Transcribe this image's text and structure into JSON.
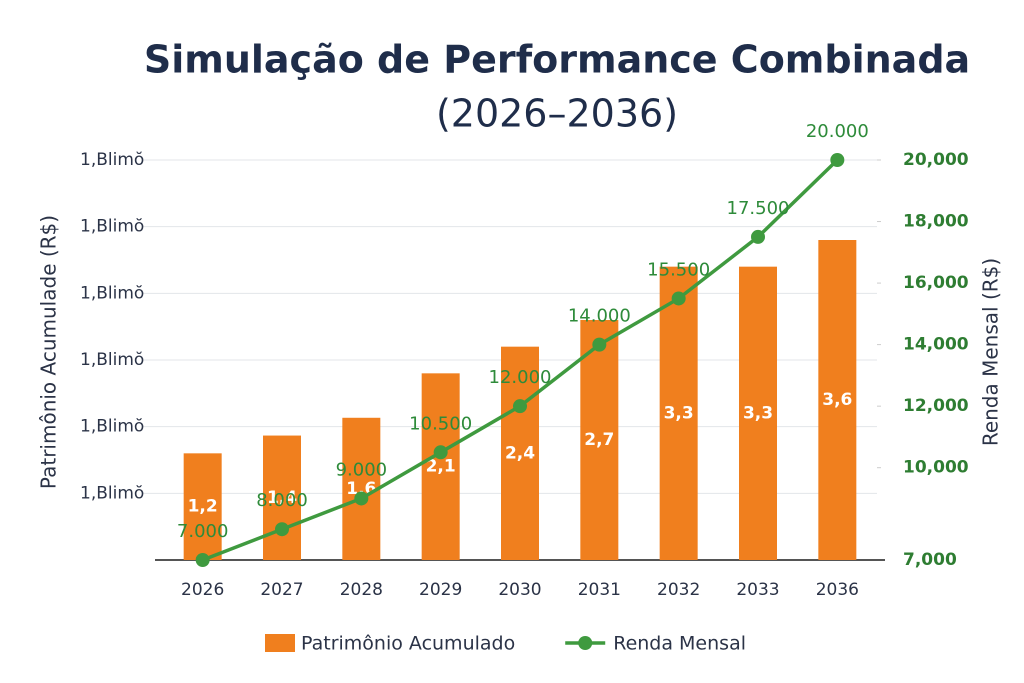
{
  "chart_data": {
    "type": "bar-line",
    "title": "Simulação de Performance Combinada",
    "subtitle": "(2026–2036)",
    "y_label": "Patrimônio Acumulade (R$)",
    "y2_label": "Renda Mensal (R$)",
    "categories": [
      "2026",
      "2027",
      "2028",
      "2029",
      "2030",
      "2031",
      "2032",
      "2033",
      "2036"
    ],
    "series": [
      {
        "name": "Patrimônio Acumulado",
        "type": "bar",
        "color": "#f07f1e",
        "values": [
          1.2,
          1.4,
          1.6,
          2.1,
          2.4,
          2.7,
          3.3,
          3.3,
          3.6
        ],
        "value_labels": [
          "1,2",
          "1,4",
          "1,6",
          "2,1",
          "2,4",
          "2,7",
          "3,3",
          "3,3",
          "3,6"
        ]
      },
      {
        "name": "Renda Mensal",
        "type": "line",
        "axis": "y2",
        "color": "#3f9a3f",
        "values": [
          7000,
          8000,
          9000,
          10500,
          12000,
          14000,
          15500,
          17500,
          20000
        ],
        "value_labels": [
          "7.000",
          "8.000",
          "9.000",
          "10.500",
          "12.000",
          "14.000",
          "15.500",
          "17.500",
          "20.000"
        ]
      }
    ],
    "ylim": [
      0,
      4.5
    ],
    "yticks": [
      {
        "value": 0.75,
        "label": "1,Blimŏ"
      },
      {
        "value": 1.5,
        "label": "1,Blimŏ"
      },
      {
        "value": 2.25,
        "label": "1,Blimŏ"
      },
      {
        "value": 3,
        "label": "1,Blimŏ"
      },
      {
        "value": 3.75,
        "label": "1,Blimŏ"
      },
      {
        "value": 4.5,
        "label": "1,Blimŏ"
      }
    ],
    "y2lim": [
      7000,
      20000
    ],
    "y2ticks": [
      {
        "value": 7000,
        "label": "7,000"
      },
      {
        "value": 10000,
        "label": "10,000"
      },
      {
        "value": 12000,
        "label": "12,000"
      },
      {
        "value": 14000,
        "label": "14,000"
      },
      {
        "value": 16000,
        "label": "16,000"
      },
      {
        "value": 18000,
        "label": "18,000"
      },
      {
        "value": 20000,
        "label": "20,000"
      }
    ],
    "grid": true
  }
}
